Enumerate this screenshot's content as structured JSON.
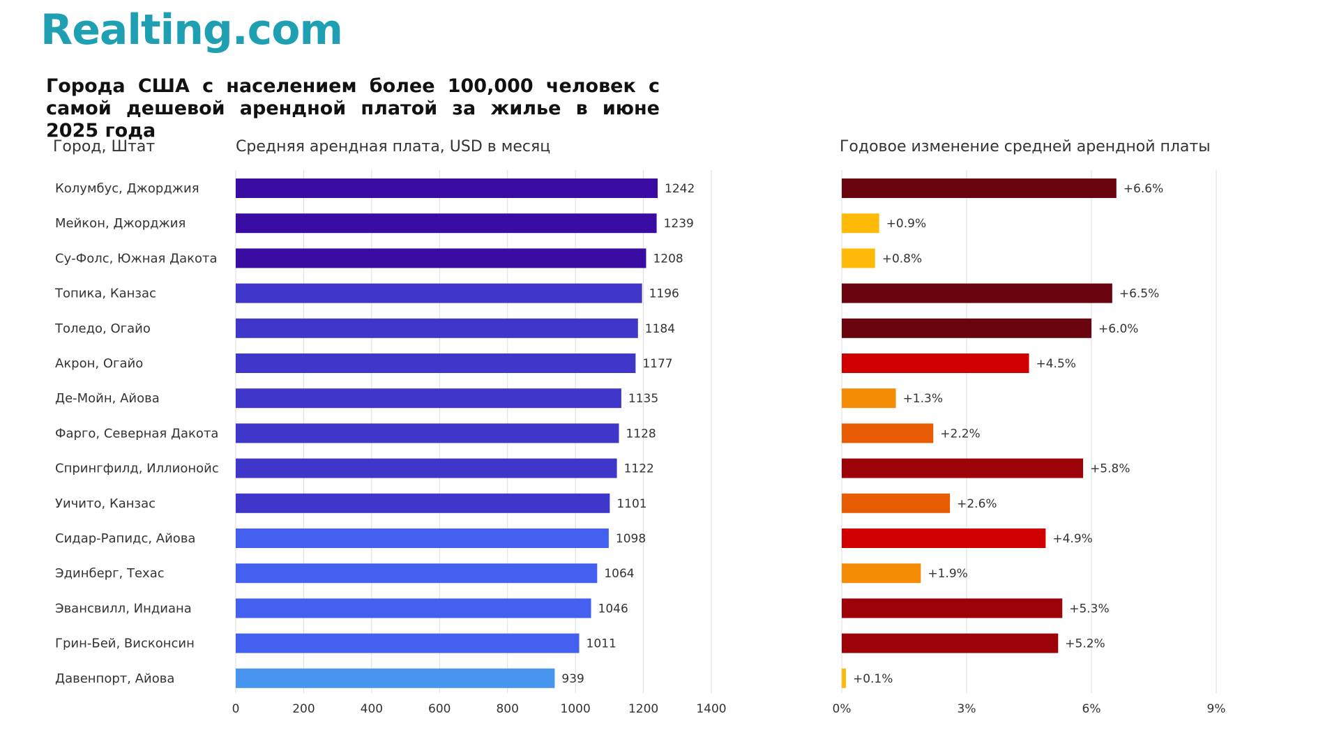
{
  "brand": {
    "logo_text": "Realting.com"
  },
  "title": "Города США с населением более 100,000 человек с самой дешевой арендной платой за жилье в июне 2025 года",
  "chart_data": [
    {
      "type": "bar",
      "orientation": "horizontal",
      "category_header": "Город, Штат",
      "title": "Средняя арендная плата, USD в месяц",
      "categories": [
        "Колумбус, Джорджия",
        "Мейкон, Джорджия",
        "Су-Фолс, Южная Дакота",
        "Топика, Канзас",
        "Толедо, Огайо",
        "Акрон, Огайо",
        "Де-Мойн, Айова",
        "Фарго, Северная Дакота",
        "Спрингфилд, Иллионойс",
        "Уичито, Канзас",
        "Сидар-Рапидс, Айова",
        "Эдинберг, Техас",
        "Эвансвилл, Индиана",
        "Грин-Бей, Висконсин",
        "Давенпорт, Айова"
      ],
      "values": [
        1242,
        1239,
        1208,
        1196,
        1184,
        1177,
        1135,
        1128,
        1122,
        1101,
        1098,
        1064,
        1046,
        1011,
        939
      ],
      "value_labels": [
        "1242",
        "1239",
        "1208",
        "1196",
        "1184",
        "1177",
        "1135",
        "1128",
        "1122",
        "1101",
        "1098",
        "1064",
        "1046",
        "1011",
        "939"
      ],
      "colors": [
        "#3a0ca3",
        "#3a0ca3",
        "#3a0ca3",
        "#3f37c9",
        "#3f37c9",
        "#3f37c9",
        "#3f37c9",
        "#3f37c9",
        "#3f37c9",
        "#3f37c9",
        "#4361ee",
        "#4361ee",
        "#4361ee",
        "#4361ee",
        "#4895ef"
      ],
      "xlim": [
        0,
        1400
      ],
      "ticks": [
        0,
        200,
        400,
        600,
        800,
        1000,
        1200,
        1400
      ],
      "tick_labels": [
        "0",
        "200",
        "400",
        "600",
        "800",
        "1000",
        "1200",
        "1400"
      ],
      "grid": true
    },
    {
      "type": "bar",
      "orientation": "horizontal",
      "title": "Годовое изменение средней арендной платы",
      "categories": [
        "Колумбус, Джорджия",
        "Мейкон, Джорджия",
        "Су-Фолс, Южная Дакота",
        "Топика, Канзас",
        "Толедо, Огайо",
        "Акрон, Огайо",
        "Де-Мойн, Айова",
        "Фарго, Северная Дакота",
        "Спрингфилд, Иллионойс",
        "Уичито, Канзас",
        "Сидар-Рапидс, Айова",
        "Эдинберг, Техас",
        "Эвансвилл, Индиана",
        "Грин-Бей, Висконсин",
        "Давенпорт, Айова"
      ],
      "values": [
        6.6,
        0.9,
        0.8,
        6.5,
        6.0,
        4.5,
        1.3,
        2.2,
        5.8,
        2.6,
        4.9,
        1.9,
        5.3,
        5.2,
        0.1
      ],
      "value_labels": [
        "+6.6%",
        "+0.9%",
        "+0.8%",
        "+6.5%",
        "+6.0%",
        "+4.5%",
        "+1.3%",
        "+2.2%",
        "+5.8%",
        "+2.6%",
        "+4.9%",
        "+1.9%",
        "+5.3%",
        "+5.2%",
        "+0.1%"
      ],
      "colors": [
        "#6a040f",
        "#ffba08",
        "#ffba08",
        "#6a040f",
        "#6a040f",
        "#d00000",
        "#f48c06",
        "#e85d04",
        "#9d0208",
        "#e85d04",
        "#d00000",
        "#f48c06",
        "#9d0208",
        "#9d0208",
        "#ffba08"
      ],
      "xlim": [
        0,
        9
      ],
      "ticks": [
        0,
        3,
        6,
        9
      ],
      "tick_labels": [
        "0%",
        "3%",
        "6%",
        "9%"
      ],
      "grid": true
    }
  ]
}
